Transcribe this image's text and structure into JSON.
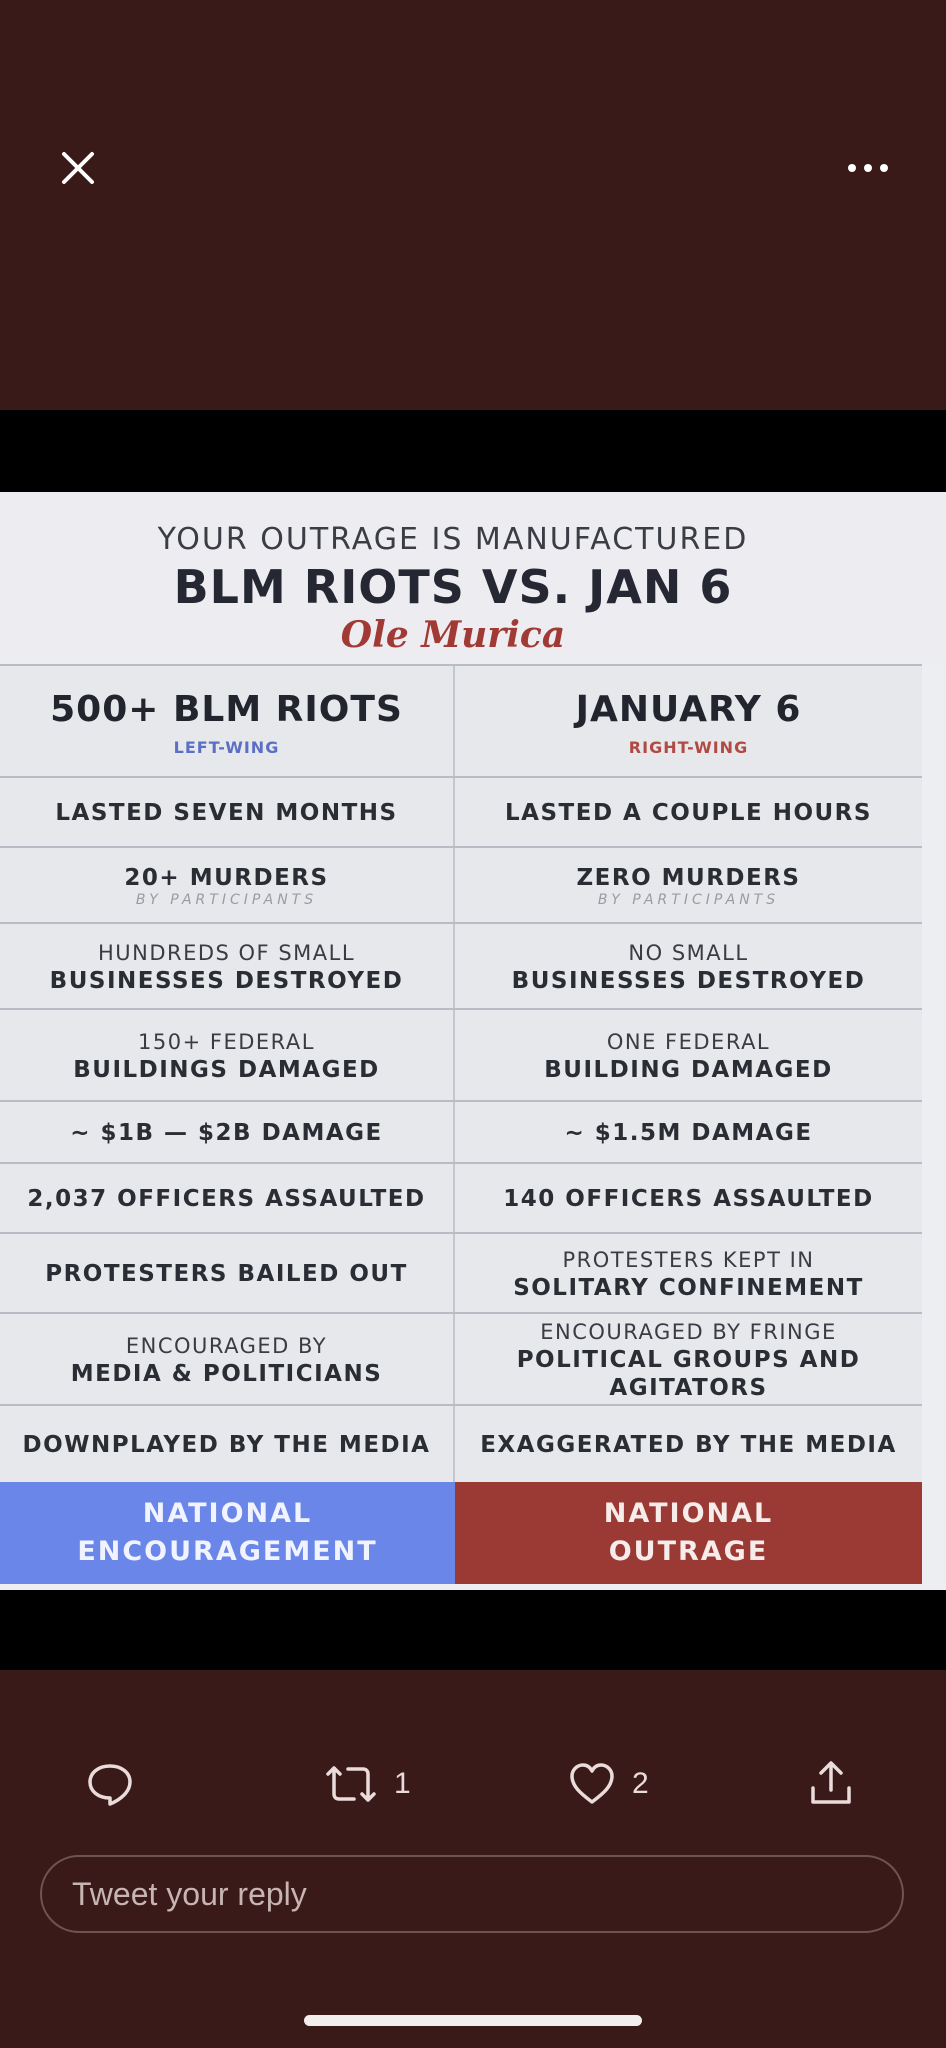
{
  "top_bar": {
    "close_icon": "close-icon",
    "more_icon": "more-horizontal-icon"
  },
  "infographic": {
    "kicker": "YOUR OUTRAGE IS MANUFACTURED",
    "title": "BLM RIOTS VS. JAN 6",
    "brand": "Ole Murica",
    "columns": [
      {
        "heading": "500+ BLM RIOTS",
        "tag": "LEFT-WING",
        "tag_color": "#5b6fc4"
      },
      {
        "heading": "JANUARY 6",
        "tag": "RIGHT-WING",
        "tag_color": "#b04a43"
      }
    ],
    "rows": [
      {
        "left_main": "LASTED SEVEN MONTHS",
        "right_main": "LASTED A COUPLE HOURS"
      },
      {
        "left_main": "20+ MURDERS",
        "left_note": "BY PARTICIPANTS",
        "right_main": "ZERO MURDERS",
        "right_note": "BY PARTICIPANTS"
      },
      {
        "left_sub": "HUNDREDS OF SMALL",
        "left_main": "BUSINESSES DESTROYED",
        "right_sub": "NO SMALL",
        "right_main": "BUSINESSES DESTROYED"
      },
      {
        "left_sub": "150+ FEDERAL",
        "left_main": "BUILDINGS DAMAGED",
        "right_sub": "ONE FEDERAL",
        "right_main": "BUILDING DAMAGED"
      },
      {
        "left_main": "~ $1B — $2B DAMAGE",
        "right_main": "~ $1.5M DAMAGE"
      },
      {
        "left_main": "2,037 OFFICERS ASSAULTED",
        "right_main": "140 OFFICERS ASSAULTED"
      },
      {
        "left_main": "PROTESTERS BAILED OUT",
        "right_sub": "PROTESTERS KEPT IN",
        "right_main": "SOLITARY CONFINEMENT"
      },
      {
        "left_sub": "ENCOURAGED BY",
        "left_main": "MEDIA & POLITICIANS",
        "right_sub": "ENCOURAGED BY FRINGE",
        "right_main": "POLITICAL GROUPS AND AGITATORS"
      },
      {
        "left_main": "DOWNPLAYED BY THE MEDIA",
        "right_main": "EXAGGERATED BY THE MEDIA"
      }
    ],
    "footer": {
      "left_line1": "NATIONAL",
      "left_line2": "ENCOURAGEMENT",
      "left_color": "#6a86e8",
      "right_line1": "NATIONAL",
      "right_line2": "OUTRAGE",
      "right_color": "#9b3a34"
    }
  },
  "actions": {
    "reply_icon": "reply-icon",
    "retweet_icon": "retweet-icon",
    "retweet_count": "1",
    "like_icon": "heart-icon",
    "like_count": "2",
    "share_icon": "share-icon"
  },
  "reply": {
    "placeholder": "Tweet your reply"
  },
  "colors": {
    "background": "#3a1a19",
    "icon": "#e9dcdb"
  }
}
